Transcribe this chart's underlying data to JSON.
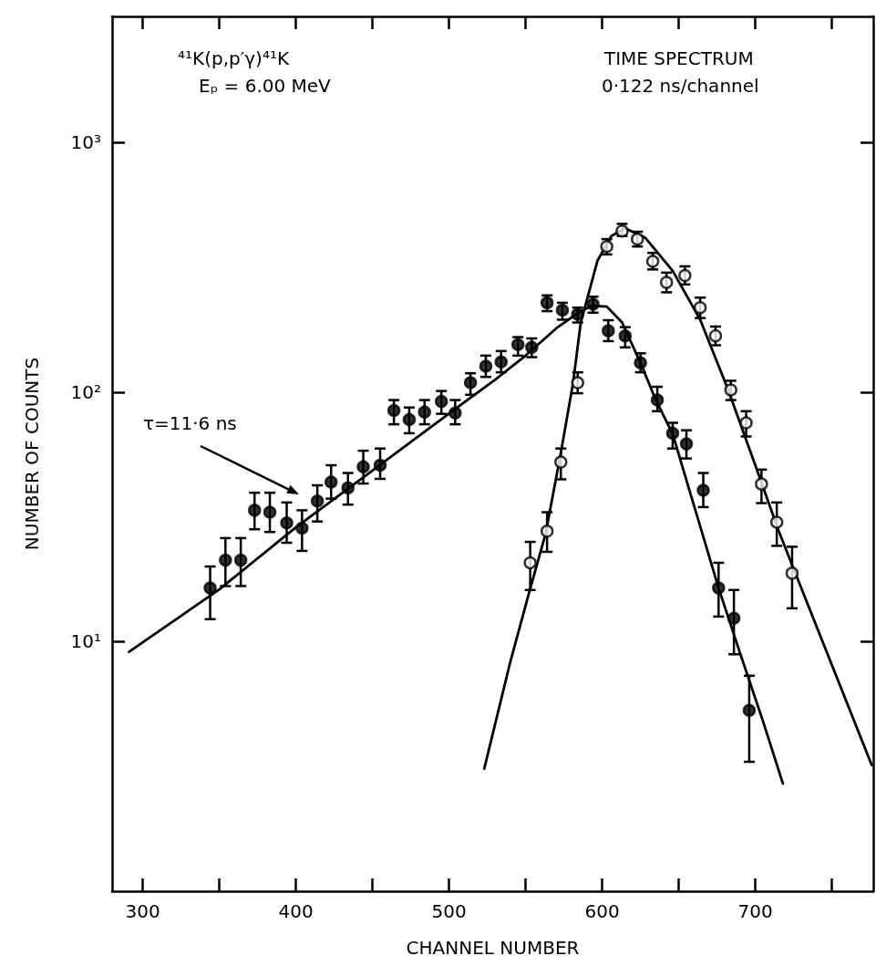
{
  "chart_data": {
    "type": "scatter",
    "xlabel": "CHANNEL NUMBER",
    "ylabel": "NUMBER OF COUNTS",
    "annotations": [
      "⁴¹K(p,p′γ)⁴¹K",
      "Eₚ = 6.00 MeV",
      "TIME SPECTRUM",
      "0·122 ns/channel",
      "τ=11·6 ns"
    ],
    "xlim": [
      280,
      777
    ],
    "xticks": [
      300,
      {
        "value": 350,
        "label": null
      },
      400,
      {
        "value": 450,
        "label": null
      },
      500,
      {
        "value": 550,
        "label": null
      },
      600,
      {
        "value": 650,
        "label": null
      },
      700,
      {
        "value": 750,
        "label": null
      }
    ],
    "ylim": [
      1,
      3200
    ],
    "yticks": [
      {
        "value": 10,
        "label": "10¹"
      },
      {
        "value": 100,
        "label": "10²"
      },
      {
        "value": 1000,
        "label": "10³"
      }
    ],
    "log": "y",
    "grid": false,
    "series": [
      {
        "marker": "circle",
        "color": "#000000",
        "x": [
          344,
          354,
          364,
          373,
          383,
          394,
          404,
          414,
          423,
          434,
          444,
          455,
          464,
          474,
          484,
          495,
          504,
          514,
          524,
          534,
          545,
          554,
          564,
          574,
          584,
          594,
          604,
          615,
          625,
          636,
          646,
          655,
          666,
          676,
          686,
          696
        ],
        "values": [
          16.4,
          21.2,
          21.2,
          33.6,
          33,
          29.9,
          28.5,
          36.6,
          43.6,
          41.3,
          50.2,
          50.9,
          84.4,
          77.6,
          83.2,
          91.7,
          82.4,
          109,
          127,
          132,
          155,
          151,
          228,
          213,
          205,
          225,
          176,
          168,
          131,
          92.9,
          68.4,
          62,
          40.4,
          16.4,
          12.4,
          5.3
        ],
        "errors": [
          [
            12.3,
            20
          ],
          [
            16.7,
            26
          ],
          [
            16.7,
            26
          ],
          [
            28.2,
            39.5
          ],
          [
            27.5,
            39.5
          ],
          [
            24.9,
            36.1
          ],
          [
            23.1,
            33.6
          ],
          [
            30.3,
            42.3
          ],
          [
            37.4,
            50.9
          ],
          [
            35.4,
            47.4
          ],
          [
            43,
            58.2
          ],
          [
            44.9,
            59.4
          ],
          [
            74.3,
            92.9
          ],
          [
            68.4,
            86.7
          ],
          [
            74.3,
            92.9
          ],
          [
            81.8,
            101
          ],
          [
            74.3,
            92.9
          ],
          [
            97.5,
            119
          ],
          [
            115,
            140
          ],
          [
            120,
            146
          ],
          [
            140,
            166
          ],
          [
            138,
            164
          ],
          [
            211,
            244
          ],
          [
            195,
            228
          ],
          [
            190,
            218
          ],
          [
            208,
            241
          ],
          [
            160,
            194
          ],
          [
            151,
            182
          ],
          [
            120,
            143
          ],
          [
            83.8,
            105
          ],
          [
            59.4,
            75.3
          ],
          [
            54.2,
            70.3
          ],
          [
            34.6,
            47.4
          ],
          [
            12.6,
            20.7
          ],
          [
            8.9,
            16.1
          ],
          [
            3.3,
            7.3
          ]
        ]
      },
      {
        "marker": "circle",
        "color": "#000000",
        "x": [
          553,
          564,
          573,
          584,
          603,
          613,
          623,
          633,
          642,
          654,
          664,
          674,
          684,
          694,
          704,
          714,
          724
        ],
        "values": [
          20.7,
          27.7,
          52.4,
          109,
          383,
          442,
          410,
          334,
          275,
          293,
          218,
          168,
          102,
          75.3,
          42.8,
          30.1,
          18.8
        ],
        "errors": [
          [
            16.1,
            25.1
          ],
          [
            22.9,
            33
          ],
          [
            44.7,
            59.4
          ],
          [
            98.9,
            120
          ],
          [
            356,
            410
          ],
          [
            422,
            472
          ],
          [
            383,
            439
          ],
          [
            310,
            361
          ],
          [
            251,
            301
          ],
          [
            270,
            319
          ],
          [
            198,
            239
          ],
          [
            154,
            183
          ],
          [
            92.9,
            111
          ],
          [
            66.4,
            83.8
          ],
          [
            35.9,
            48.9
          ],
          [
            24.2,
            36.1
          ],
          [
            13.6,
            24
          ]
        ]
      },
      {
        "type": "line",
        "marker": "none",
        "line_style": "solid",
        "color": "#000000",
        "x": [
          291,
          350,
          400,
          450,
          500,
          530,
          550,
          570,
          583,
          593,
          603,
          613,
          625,
          635,
          646,
          660,
          676,
          690,
          705,
          718
        ],
        "values": [
          9.1,
          16.2,
          28.7,
          48.5,
          82,
          112,
          140,
          180,
          205,
          222,
          220,
          190,
          131,
          93,
          68,
          35,
          16.4,
          9,
          4.8,
          2.7
        ]
      },
      {
        "type": "line",
        "marker": "none",
        "line_style": "solid",
        "color": "#000000",
        "x": [
          523,
          540,
          552,
          563,
          573,
          581,
          586,
          597,
          606,
          615,
          628,
          646,
          664,
          682,
          702,
          715,
          728,
          776
        ],
        "values": [
          3.1,
          8.3,
          15.5,
          27,
          57,
          109,
          190,
          337,
          422,
          453,
          416,
          306,
          195,
          103,
          47,
          28,
          17.6,
          3.2
        ]
      }
    ]
  }
}
